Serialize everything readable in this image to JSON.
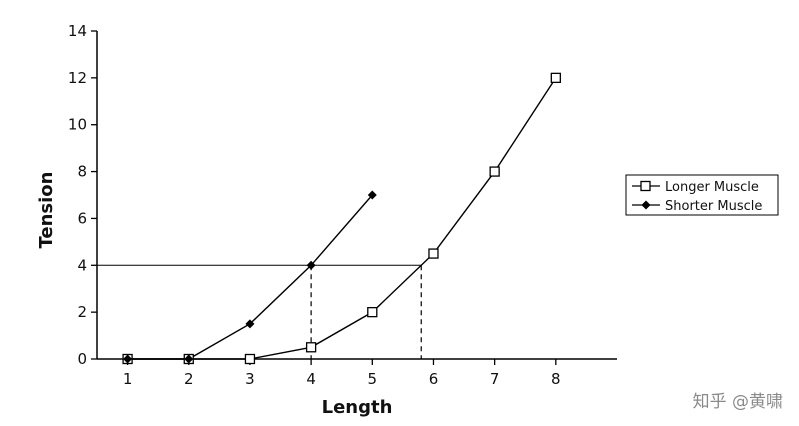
{
  "chart_data": {
    "type": "line",
    "title": "",
    "xlabel": "Length",
    "ylabel": "Tension",
    "xlim": [
      0.5,
      9.0
    ],
    "ylim": [
      0,
      14
    ],
    "xticks": [
      1,
      2,
      3,
      4,
      5,
      6,
      7,
      8
    ],
    "yticks": [
      0,
      2,
      4,
      6,
      8,
      10,
      12,
      14
    ],
    "grid": false,
    "legend_position": "right",
    "series": [
      {
        "name": "Longer Muscle",
        "marker": "open-square",
        "color": "#000000",
        "x": [
          1,
          2,
          3,
          4,
          5,
          6,
          7,
          8
        ],
        "y": [
          0,
          0,
          0,
          0.5,
          2,
          4.5,
          8,
          12
        ]
      },
      {
        "name": "Shorter Muscle",
        "marker": "filled-diamond",
        "color": "#000000",
        "x": [
          1,
          2,
          3,
          4,
          5
        ],
        "y": [
          0,
          0,
          1.5,
          4,
          7
        ]
      }
    ],
    "annotations": {
      "reference_tension": 4,
      "shorter_length_at_reference": 4,
      "longer_length_at_reference": 5.8
    }
  },
  "watermark": "知乎 @黄啸"
}
